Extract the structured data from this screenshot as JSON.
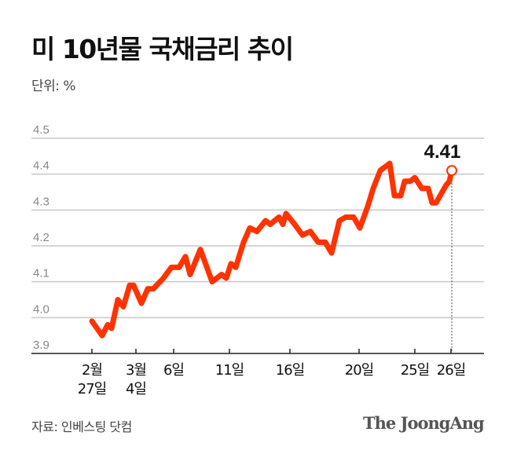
{
  "chart_data": {
    "type": "line",
    "title": "미 10년물 국채금리 추이",
    "unit_label": "단위: %",
    "source": "자료: 인베스팅 닷컴",
    "brand": "The JoongAng",
    "ylim": [
      3.9,
      4.5
    ],
    "yticks": [
      "3.9",
      "4.0",
      "4.1",
      "4.2",
      "4.3",
      "4.4",
      "4.5"
    ],
    "grid": true,
    "xticks": [
      {
        "line1": "2월",
        "line2": "27일"
      },
      {
        "line1": "3월",
        "line2": "4일"
      },
      {
        "line1": "6일",
        "line2": ""
      },
      {
        "line1": "11일",
        "line2": ""
      },
      {
        "line1": "16일",
        "line2": ""
      },
      {
        "line1": "20일",
        "line2": ""
      },
      {
        "line1": "25일",
        "line2": ""
      },
      {
        "line1": "26일",
        "line2": ""
      }
    ],
    "values": [
      3.99,
      3.95,
      3.98,
      3.97,
      4.05,
      4.03,
      4.09,
      4.09,
      4.04,
      4.08,
      4.08,
      4.11,
      4.14,
      4.14,
      4.17,
      4.12,
      4.19,
      4.1,
      4.12,
      4.11,
      4.15,
      4.14,
      4.21,
      4.25,
      4.24,
      4.27,
      4.26,
      4.28,
      4.26,
      4.29,
      4.26,
      4.23,
      4.24,
      4.21,
      4.21,
      4.18,
      4.27,
      4.28,
      4.28,
      4.25,
      4.31,
      4.36,
      4.41,
      4.43,
      4.34,
      4.34,
      4.38,
      4.38,
      4.39,
      4.36,
      4.36,
      4.32,
      4.32,
      4.37,
      4.38,
      4.41
    ],
    "last_value_label": "4.41",
    "line_color": "#ff3300"
  }
}
